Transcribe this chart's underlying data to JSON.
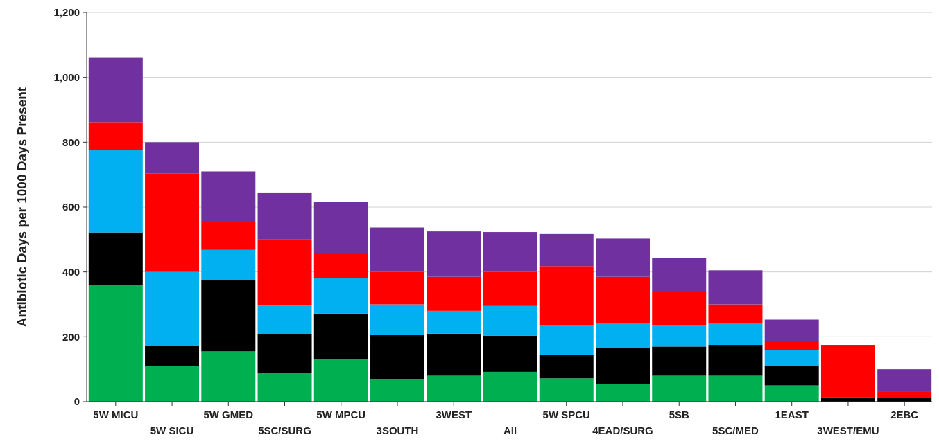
{
  "chart_data": {
    "type": "bar",
    "stacked": true,
    "ylabel": "Antibiotic Days per 1000 Days Present",
    "categories": [
      "5W MICU",
      "5W SICU",
      "5W GMED",
      "5SC/SURG",
      "5W MPCU",
      "3SOUTH",
      "3WEST",
      "All",
      "5W SPCU",
      "4EAD/SURG",
      "5SB",
      "5SC/MED",
      "1EAST",
      "3WEST/EMU",
      "2EBC"
    ],
    "series": [
      {
        "color": "#00b050",
        "values": [
          360,
          110,
          155,
          88,
          130,
          70,
          80,
          92,
          72,
          55,
          80,
          80,
          50,
          0,
          0
        ]
      },
      {
        "color": "#000000",
        "values": [
          162,
          62,
          220,
          120,
          142,
          135,
          130,
          111,
          73,
          110,
          90,
          95,
          62,
          13,
          12
        ]
      },
      {
        "color": "#00b0f0",
        "values": [
          253,
          228,
          93,
          88,
          108,
          95,
          70,
          92,
          91,
          78,
          65,
          68,
          48,
          0,
          0
        ]
      },
      {
        "color": "#ff0000",
        "values": [
          87,
          303,
          87,
          204,
          77,
          100,
          105,
          105,
          182,
          142,
          103,
          57,
          27,
          162,
          18
        ]
      },
      {
        "color": "#7030a0",
        "values": [
          198,
          97,
          155,
          145,
          158,
          137,
          140,
          123,
          99,
          118,
          105,
          105,
          66,
          0,
          70
        ]
      }
    ],
    "ylim": [
      0,
      1200
    ],
    "yticks": [
      {
        "value": 0,
        "label": "0"
      },
      {
        "value": 200,
        "label": "200"
      },
      {
        "value": 400,
        "label": "400"
      },
      {
        "value": 600,
        "label": "600"
      },
      {
        "value": 800,
        "label": "800"
      },
      {
        "value": 1000,
        "label": "1,000"
      },
      {
        "value": 1200,
        "label": "1,200"
      }
    ],
    "grid": "y"
  }
}
